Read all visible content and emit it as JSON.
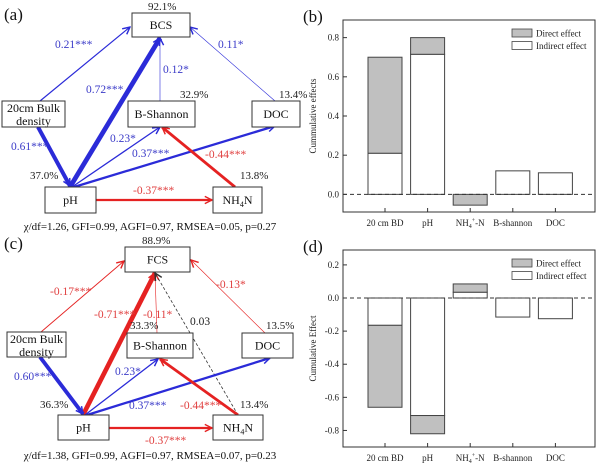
{
  "diagrams": [
    {
      "panel": "(a)",
      "nodes": {
        "top": {
          "label": "BCS",
          "r2": "92.1%"
        },
        "bd": {
          "label1": "20cm Bulk",
          "label2": "density"
        },
        "bs": {
          "label": "B-Shannon",
          "r2": "32.9%"
        },
        "doc": {
          "label": "DOC",
          "r2": "13.4%"
        },
        "ph": {
          "label": "pH",
          "r2": "37.0%"
        },
        "nh": {
          "label": "NH4N",
          "r2": "13.8%"
        }
      },
      "edges": [
        {
          "from": "bd",
          "to": "top",
          "coef": 0.21,
          "label": "0.21***",
          "style": "solid"
        },
        {
          "from": "ph",
          "to": "top",
          "coef": 0.72,
          "label": "0.72***",
          "style": "solid"
        },
        {
          "from": "bs",
          "to": "top",
          "coef": 0.12,
          "label": "0.12*",
          "style": "solid"
        },
        {
          "from": "doc",
          "to": "top",
          "coef": 0.11,
          "label": "0.11*",
          "style": "solid"
        },
        {
          "from": "bd",
          "to": "ph",
          "coef": 0.61,
          "label": "0.61***",
          "style": "solid"
        },
        {
          "from": "ph",
          "to": "bs",
          "coef": 0.23,
          "label": "0.23*",
          "style": "solid"
        },
        {
          "from": "ph",
          "to": "doc",
          "coef": 0.37,
          "label": "0.37***",
          "style": "solid"
        },
        {
          "from": "nh",
          "to": "bs",
          "coef": -0.44,
          "label": "-0.44***",
          "style": "solid"
        },
        {
          "from": "ph",
          "to": "nh",
          "coef": -0.37,
          "label": "-0.37***",
          "style": "solid"
        }
      ],
      "stats": "χ/df=1.26, GFI=0.99, AGFI=0.97, RMSEA=0.05, p=0.27"
    },
    {
      "panel": "(c)",
      "nodes": {
        "top": {
          "label": "FCS",
          "r2": "88.9%"
        },
        "bd": {
          "label1": "20cm Bulk",
          "label2": "density"
        },
        "bs": {
          "label": "B-Shannon",
          "r2": "33.3%"
        },
        "doc": {
          "label": "DOC",
          "r2": "13.5%"
        },
        "ph": {
          "label": "pH",
          "r2": "36.3%"
        },
        "nh": {
          "label": "NH4N",
          "r2": "13.4%"
        }
      },
      "edges": [
        {
          "from": "bd",
          "to": "top",
          "coef": -0.17,
          "label": "-0.17***",
          "style": "solid"
        },
        {
          "from": "ph",
          "to": "top",
          "coef": -0.71,
          "label": "-0.71***",
          "style": "solid"
        },
        {
          "from": "bs",
          "to": "top",
          "coef": -0.11,
          "label": "-0.11*",
          "style": "solid"
        },
        {
          "from": "nh",
          "to": "top",
          "coef": 0.03,
          "label": "0.03",
          "style": "dashed"
        },
        {
          "from": "doc",
          "to": "top",
          "coef": -0.13,
          "label": "-0.13*",
          "style": "solid"
        },
        {
          "from": "bd",
          "to": "ph",
          "coef": 0.6,
          "label": "0.60***",
          "style": "solid"
        },
        {
          "from": "ph",
          "to": "bs",
          "coef": 0.23,
          "label": "0.23*",
          "style": "solid"
        },
        {
          "from": "ph",
          "to": "doc",
          "coef": 0.37,
          "label": "0.37***",
          "style": "solid"
        },
        {
          "from": "nh",
          "to": "bs",
          "coef": -0.44,
          "label": "-0.44***",
          "style": "solid"
        },
        {
          "from": "ph",
          "to": "nh",
          "coef": -0.37,
          "label": "-0.37***",
          "style": "solid"
        }
      ],
      "stats": "χ/df=1.38, GFI=0.99, AGFI=0.97, RMSEA=0.07, p=0.23"
    }
  ],
  "colors": {
    "positive": "#2b2bd8",
    "positive_label": "#3b3bc8",
    "negative": "#e52222",
    "negative_label": "#e04040",
    "nonsignificant": "#333333",
    "direct_fill": "#c0c0c0",
    "indirect_fill": "#ffffff"
  },
  "chart_data": [
    {
      "panel": "(b)",
      "type": "bar",
      "stacked": true,
      "categories": [
        "20 cm BD",
        "pH",
        "NH4+-N",
        "B-shannon",
        "DOC"
      ],
      "category_display": [
        [
          "20 cm BD",
          ""
        ],
        [
          "pH",
          ""
        ],
        [
          "NH",
          "4",
          "+",
          "-N"
        ],
        [
          "B-shannon",
          ""
        ],
        [
          "DOC",
          ""
        ]
      ],
      "series": [
        {
          "name": "Indirect effect",
          "values": [
            0.21,
            0.715,
            0,
            0.12,
            0.11
          ]
        },
        {
          "name": "Direct effect",
          "values": [
            0.49,
            0.085,
            -0.055,
            0,
            0
          ]
        }
      ],
      "ylabel": "Cummulative effects",
      "yticks": [
        "0.0",
        "0.2",
        "0.4",
        "0.6",
        "0.8"
      ],
      "ylim": [
        -0.09,
        0.89
      ],
      "zero_line": "dashed",
      "legend": [
        "Direct effect",
        "Indirect effect"
      ],
      "legend_position": "top-right"
    },
    {
      "panel": "(d)",
      "type": "bar",
      "stacked": true,
      "categories": [
        "20 cm BD",
        "pH",
        "NH4+-N",
        "B-shannon",
        "DOC"
      ],
      "category_display": [
        [
          "20 cm BD",
          ""
        ],
        [
          "pH",
          ""
        ],
        [
          "NH",
          "4",
          "+",
          "-N"
        ],
        [
          "B-shannon",
          ""
        ],
        [
          "DOC",
          ""
        ]
      ],
      "series": [
        {
          "name": "Indirect effect",
          "values": [
            -0.165,
            -0.71,
            0.035,
            -0.115,
            -0.125
          ]
        },
        {
          "name": "Direct effect",
          "values": [
            -0.495,
            -0.11,
            0.05,
            0,
            0
          ]
        }
      ],
      "ylabel": "Cumulative Effect",
      "yticks": [
        "-0.8",
        "-0.6",
        "-0.4",
        "-0.2",
        "0.0",
        "0.2"
      ],
      "ylim": [
        -0.9,
        0.29
      ],
      "zero_line": "dashed",
      "legend": [
        "Direct effect",
        "Indirect effect"
      ],
      "legend_position": "top-right"
    }
  ]
}
